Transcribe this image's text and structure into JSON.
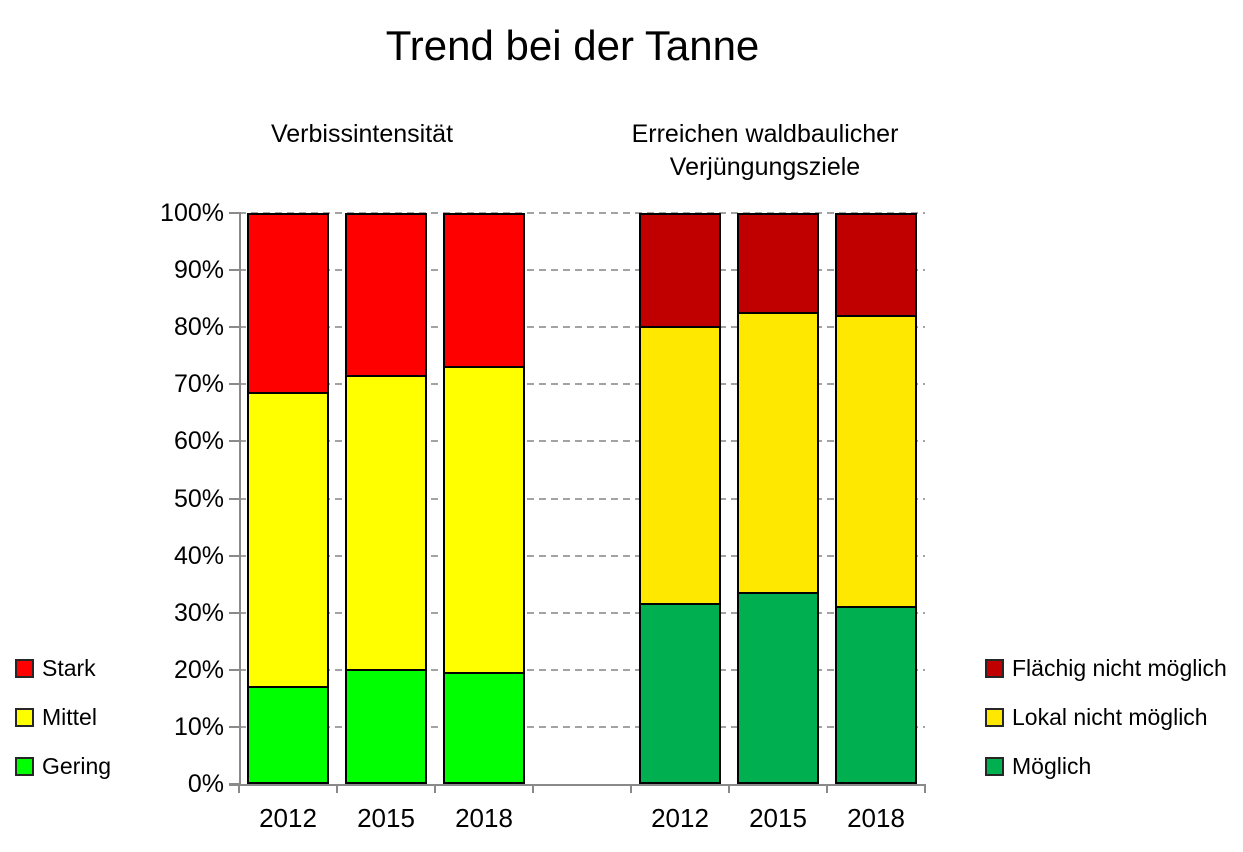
{
  "chart_data": {
    "type": "bar",
    "stacked": true,
    "stacking": "percent",
    "title": "Trend bei der Tanne",
    "xlabel": "",
    "ylabel": "",
    "ylim": [
      0,
      100
    ],
    "ytick_labels": [
      "0%",
      "10%",
      "20%",
      "30%",
      "40%",
      "50%",
      "60%",
      "70%",
      "80%",
      "90%",
      "100%"
    ],
    "grid": "horizontal-dashed",
    "legend_position": "left-and-right-bottom",
    "groups": [
      {
        "subtitle": "Verbissintensität",
        "categories": [
          "2012",
          "2015",
          "2018"
        ],
        "series": [
          {
            "name": "Gering",
            "color": "#00FF00",
            "values": [
              17,
              20,
              19.5
            ]
          },
          {
            "name": "Mittel",
            "color": "#FFFF00",
            "values": [
              51.5,
              51.5,
              53.5
            ]
          },
          {
            "name": "Stark",
            "color": "#FF0000",
            "values": [
              31.5,
              28.5,
              27
            ]
          }
        ],
        "legend_order_top_to_bottom": [
          "Stark",
          "Mittel",
          "Gering"
        ]
      },
      {
        "subtitle": "Erreichen waldbaulicher\nVerjüngungsziele",
        "categories": [
          "2012",
          "2015",
          "2018"
        ],
        "series": [
          {
            "name": "Möglich",
            "color": "#00B050",
            "values": [
              31.5,
              33.5,
              31
            ]
          },
          {
            "name": "Lokal nicht möglich",
            "color": "#FFE800",
            "values": [
              48.5,
              49,
              51
            ]
          },
          {
            "name": "Flächig nicht möglich",
            "color": "#C00000",
            "values": [
              20,
              17.5,
              18
            ]
          }
        ],
        "legend_order_top_to_bottom": [
          "Flächig nicht möglich",
          "Lokal nicht möglich",
          "Möglich"
        ]
      }
    ],
    "colors": {
      "axis": "#8A8A8A",
      "gridline": "#A3A3A3",
      "bar_border": "#000000",
      "text": "#000000",
      "background": "#FFFFFF"
    }
  }
}
